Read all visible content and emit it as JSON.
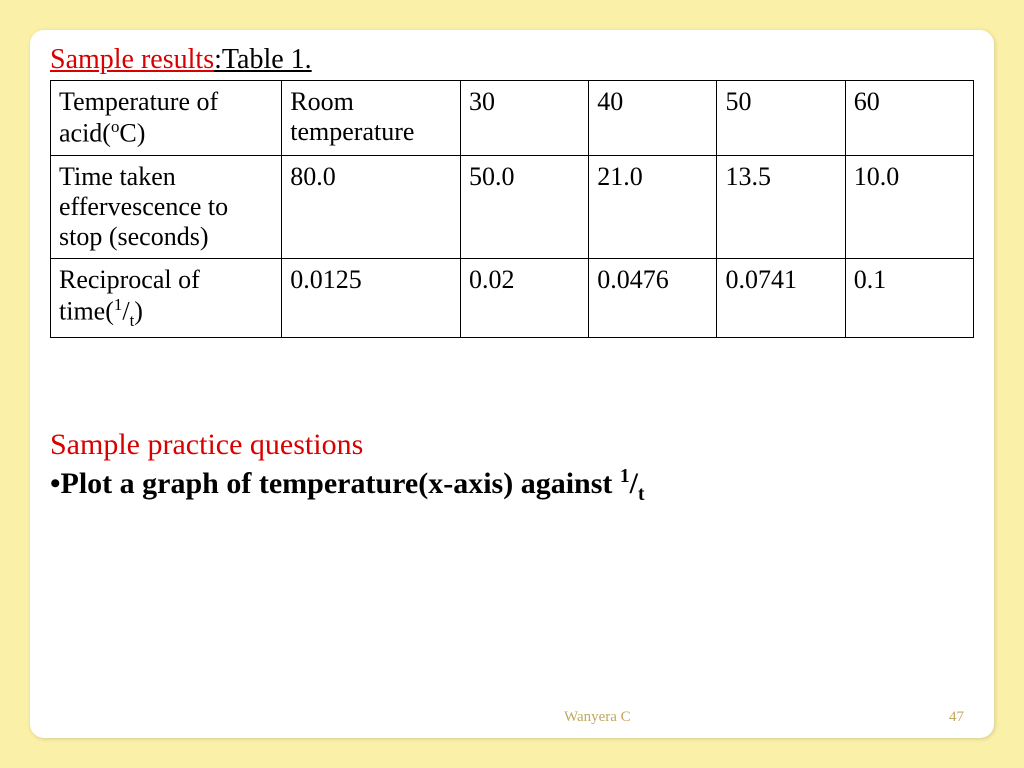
{
  "title": {
    "red_part": "Sample results",
    "black_part": ":Table 1."
  },
  "table": {
    "columns_widths": [
      "22%",
      "17%",
      "12.2%",
      "12.2%",
      "12.2%",
      "12.2%"
    ],
    "rows": [
      {
        "label_html": "Temperature of acid(<span class='sup'>o</span>C)",
        "cells": [
          "Room temperature",
          "30",
          "40",
          "50",
          "60"
        ]
      },
      {
        "label_html": "Time taken effervescence to stop (seconds)",
        "cells": [
          "80.0",
          "50.0",
          "21.0",
          "13.5",
          "10.0"
        ]
      },
      {
        "label_html": "Reciprocal of time(<span class='sup'>1</span>/<span class='sub'>t</span>)",
        "cells": [
          "0.0125",
          "0.02",
          "0.0476",
          "0.0741",
          "0.1"
        ]
      }
    ],
    "border_color": "#000000",
    "cell_font_size": 26
  },
  "practice": {
    "heading": "Sample practice questions",
    "bullet_prefix": "•",
    "bullet_text_html": "Plot a graph of temperature(x-axis) against <span class='sup'>1</span>/<span class='sub'>t</span>"
  },
  "footer": {
    "author": "Wanyera C",
    "page": "47"
  },
  "colors": {
    "page_background": "#faf0a8",
    "slide_background": "#ffffff",
    "accent_red": "#d80000",
    "text_black": "#000000",
    "footer_text": "#c0a860"
  }
}
